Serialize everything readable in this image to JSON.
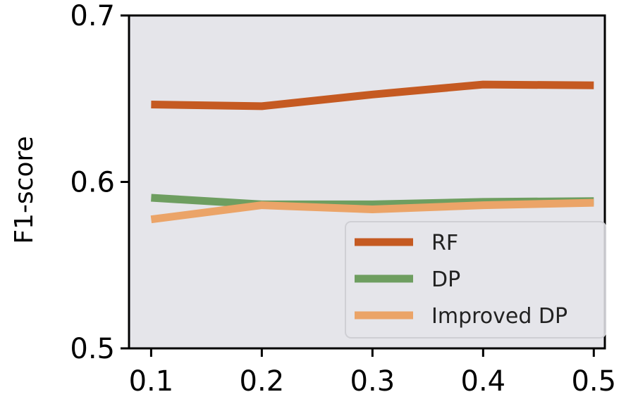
{
  "chart_data": {
    "type": "line",
    "xlabel": "",
    "ylabel": "F1-score",
    "x": [
      0.1,
      0.2,
      0.3,
      0.4,
      0.5
    ],
    "x_tick_labels": [
      "0.1",
      "0.2",
      "0.3",
      "0.4",
      "0.5"
    ],
    "y_tick_values": [
      0.5,
      0.6,
      0.7
    ],
    "y_tick_labels": [
      "0.5",
      "0.6",
      "0.7"
    ],
    "xlim": [
      0.08,
      0.51
    ],
    "ylim": [
      0.5,
      0.7
    ],
    "grid": false,
    "legend_position": "lower-right",
    "plot_background": "#e5e5ea",
    "series": [
      {
        "name": "RF",
        "color": "#c55a22",
        "values": [
          0.6465,
          0.6455,
          0.6525,
          0.6585,
          0.658
        ]
      },
      {
        "name": "DP",
        "color": "#6e9e60",
        "values": [
          0.5905,
          0.5865,
          0.5865,
          0.588,
          0.5885
        ]
      },
      {
        "name": "Improved DP",
        "color": "#eba468",
        "values": [
          0.5775,
          0.586,
          0.5835,
          0.586,
          0.5875
        ]
      }
    ]
  }
}
